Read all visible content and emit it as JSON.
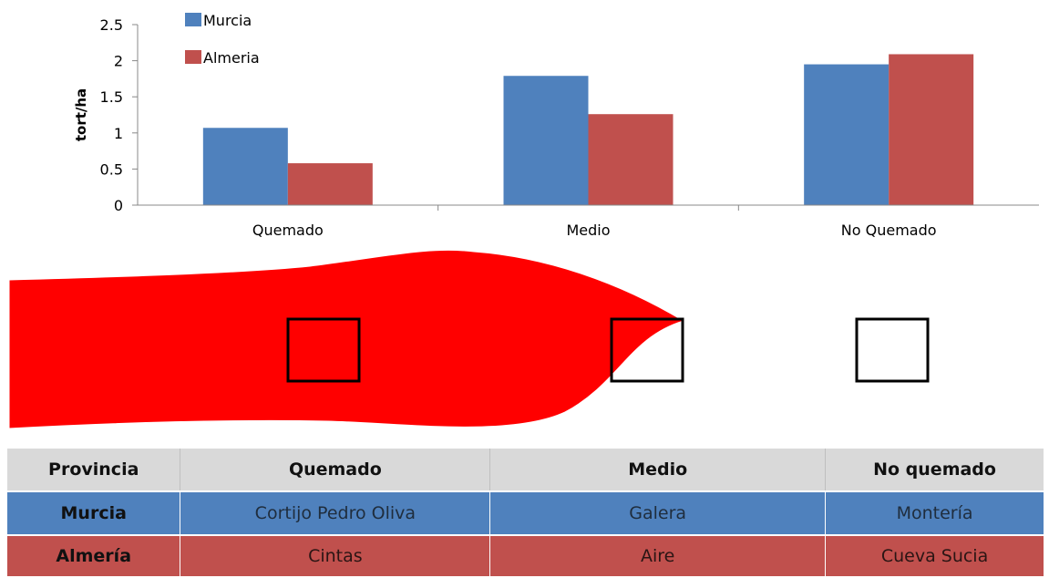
{
  "chart_data": {
    "type": "bar",
    "categories": [
      "Quemado",
      "Medio",
      "No Quemado"
    ],
    "series": [
      {
        "name": "Murcia",
        "color": "#4f81bd",
        "values": [
          1.07,
          1.79,
          1.95
        ]
      },
      {
        "name": "Almeria",
        "color": "#c0504d",
        "values": [
          0.58,
          1.26,
          2.09
        ]
      }
    ],
    "ylabel": "tort/ha",
    "xlabel": "",
    "ylim": [
      0,
      2.5
    ],
    "yticks": [
      "0",
      "0.5",
      "1",
      "1.5",
      "2",
      "2.5"
    ],
    "legend_position": "top-left",
    "grid": false
  },
  "diagram": {
    "fire_color": "#ff0000",
    "plot_markers": [
      "Quemado",
      "Medio",
      "No Quemado"
    ]
  },
  "table": {
    "headers": [
      "Provincia",
      "Quemado",
      "Medio",
      "No quemado"
    ],
    "rows": [
      {
        "province": "Murcia",
        "quemado": "Cortijo Pedro Oliva",
        "medio": "Galera",
        "no_quemado": "Montería"
      },
      {
        "province": "Almería",
        "quemado": "Cintas",
        "medio": "Aire",
        "no_quemado": "Cueva Sucia"
      }
    ]
  }
}
